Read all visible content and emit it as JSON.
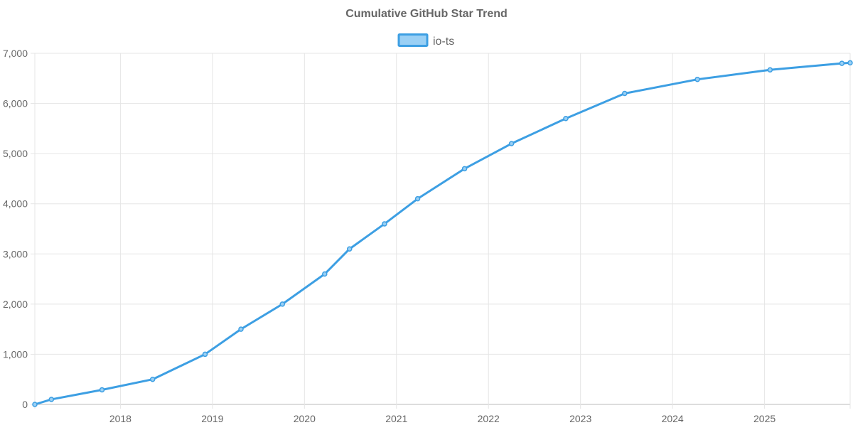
{
  "chart_data": {
    "type": "line",
    "title": "Cumulative GitHub Star Trend",
    "xlabel": "",
    "ylabel": "",
    "ylim": [
      0,
      7000
    ],
    "xlim": [
      2017.07,
      2025.93
    ],
    "y_ticks": [
      0,
      1000,
      2000,
      3000,
      4000,
      5000,
      6000,
      7000
    ],
    "y_tick_labels": [
      "0",
      "1,000",
      "2,000",
      "3,000",
      "4,000",
      "5,000",
      "6,000",
      "7,000"
    ],
    "x_ticks": [
      2018,
      2019,
      2020,
      2021,
      2022,
      2023,
      2024,
      2025
    ],
    "x_tick_labels": [
      "2018",
      "2019",
      "2020",
      "2021",
      "2022",
      "2023",
      "2024",
      "2025"
    ],
    "grid": true,
    "legend_position": "top-center",
    "series": [
      {
        "name": "io-ts",
        "color": "#3d9fe3",
        "fill": "#9ad0f5",
        "x": [
          2017.07,
          2017.25,
          2017.8,
          2018.35,
          2018.92,
          2019.31,
          2019.76,
          2020.22,
          2020.49,
          2020.87,
          2021.23,
          2021.74,
          2022.25,
          2022.84,
          2023.48,
          2024.27,
          2025.06,
          2025.84,
          2025.93
        ],
        "values": [
          0,
          100,
          290,
          500,
          1000,
          1500,
          2000,
          2600,
          3100,
          3600,
          4100,
          4700,
          5200,
          5700,
          6200,
          6480,
          6670,
          6800,
          6810
        ]
      }
    ]
  }
}
